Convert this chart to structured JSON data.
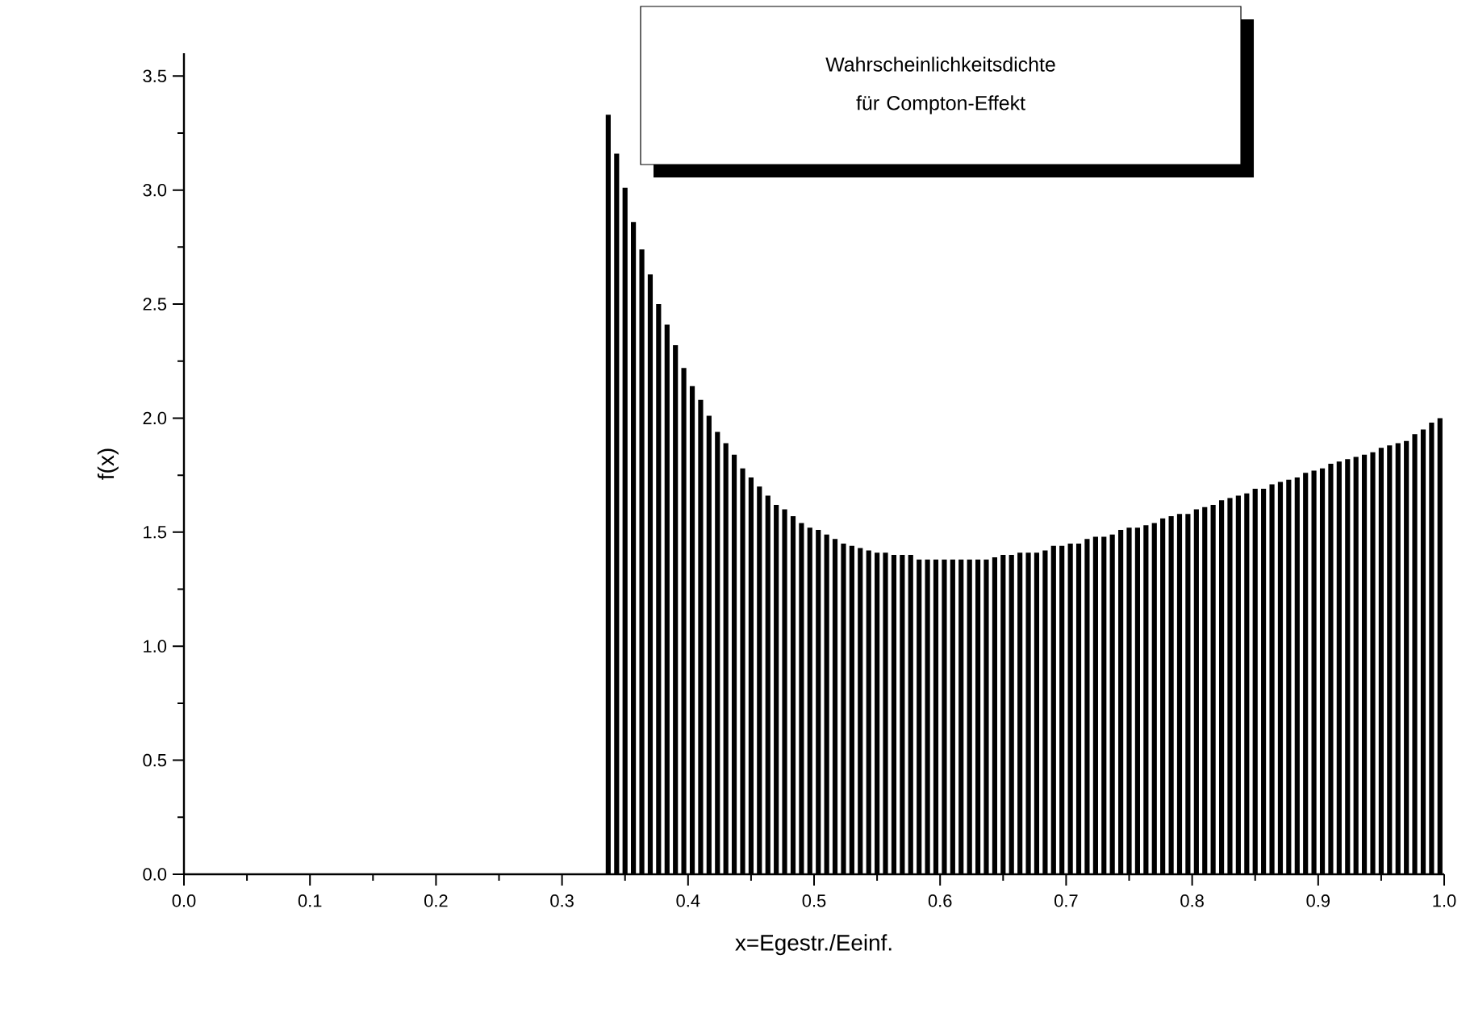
{
  "chart_data": {
    "type": "histogram",
    "title": "Wahrscheinlichkeitsdichte für Compton-Effekt",
    "xlabel": "x=Egestr./Eeinf.",
    "ylabel": "f(x)",
    "bins": [
      0.3333,
      0.34,
      0.3467,
      0.3533,
      0.36,
      0.3667,
      0.3733,
      0.38,
      0.3867,
      0.3933,
      0.4,
      0.4067,
      0.4133,
      0.42,
      0.4267,
      0.4333,
      0.44,
      0.4467,
      0.4533,
      0.46,
      0.4667,
      0.4733,
      0.48,
      0.4867,
      0.4933,
      0.5,
      0.5067,
      0.5133,
      0.52,
      0.5267,
      0.5333,
      0.54,
      0.5467,
      0.5533,
      0.56,
      0.5667,
      0.5733,
      0.58,
      0.5867,
      0.5933,
      0.6,
      0.6067,
      0.6133,
      0.62,
      0.6267,
      0.6333,
      0.64,
      0.6467,
      0.6533,
      0.66,
      0.6667,
      0.6733,
      0.68,
      0.6867,
      0.6933,
      0.7,
      0.7067,
      0.7133,
      0.72,
      0.7267,
      0.7333,
      0.74,
      0.7467,
      0.7533,
      0.76,
      0.7667,
      0.7733,
      0.78,
      0.7867,
      0.7933,
      0.8,
      0.8067,
      0.8133,
      0.82,
      0.8267,
      0.8333,
      0.84,
      0.8467,
      0.8533,
      0.86,
      0.8667,
      0.8733,
      0.88,
      0.8867,
      0.8933,
      0.9,
      0.9067,
      0.9133,
      0.92,
      0.9267,
      0.9333,
      0.94,
      0.9467,
      0.9533,
      0.96,
      0.9667,
      0.9733,
      0.98,
      0.9867,
      0.9933,
      1.0
    ],
    "values": [
      3.33,
      3.16,
      3.01,
      2.86,
      2.74,
      2.63,
      2.5,
      2.41,
      2.32,
      2.22,
      2.14,
      2.08,
      2.01,
      1.94,
      1.89,
      1.84,
      1.78,
      1.74,
      1.7,
      1.66,
      1.62,
      1.6,
      1.57,
      1.54,
      1.52,
      1.51,
      1.49,
      1.47,
      1.45,
      1.44,
      1.43,
      1.42,
      1.41,
      1.41,
      1.4,
      1.4,
      1.4,
      1.38,
      1.38,
      1.38,
      1.38,
      1.38,
      1.38,
      1.38,
      1.38,
      1.38,
      1.39,
      1.4,
      1.4,
      1.41,
      1.41,
      1.41,
      1.42,
      1.44,
      1.44,
      1.45,
      1.45,
      1.47,
      1.48,
      1.48,
      1.49,
      1.51,
      1.52,
      1.52,
      1.53,
      1.54,
      1.56,
      1.57,
      1.58,
      1.58,
      1.6,
      1.61,
      1.62,
      1.64,
      1.65,
      1.66,
      1.67,
      1.69,
      1.69,
      1.71,
      1.72,
      1.73,
      1.74,
      1.76,
      1.77,
      1.78,
      1.8,
      1.81,
      1.82,
      1.83,
      1.84,
      1.85,
      1.87,
      1.88,
      1.89,
      1.9,
      1.93,
      1.95,
      1.98,
      2.0
    ],
    "color": "#000000",
    "xlim": [
      0,
      1.0
    ],
    "xticks": [
      {
        "value": 0,
        "label": "0.0"
      },
      0.1,
      0.2,
      0.3,
      0.4,
      0.5,
      0.6,
      0.7,
      0.8,
      0.9,
      {
        "value": 1,
        "label": "1.0"
      }
    ],
    "ylim": [
      0,
      3.6
    ],
    "yticks": [
      {
        "value": 0,
        "label": "0.0"
      },
      0.5,
      {
        "value": 1,
        "label": "1.0"
      },
      1.5,
      {
        "value": 2,
        "label": "2.0"
      },
      2.5,
      {
        "value": 3,
        "label": "3.0"
      },
      3.5
    ],
    "grid": false
  }
}
